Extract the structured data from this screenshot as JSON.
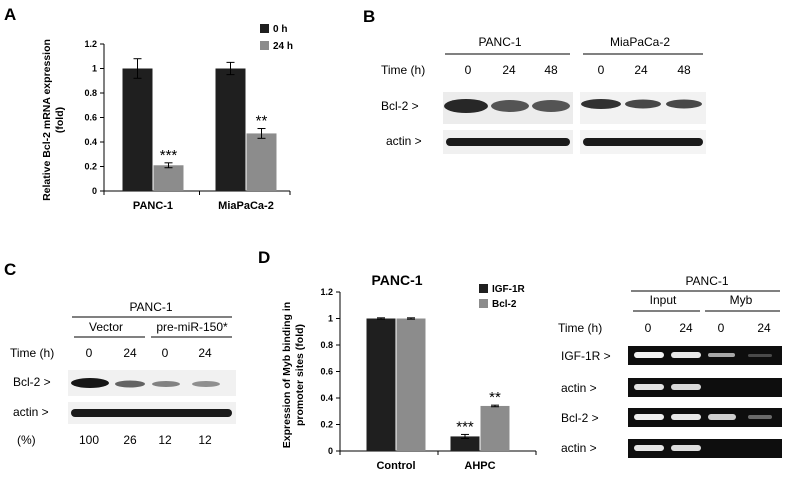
{
  "panels": {
    "A": {
      "letter": "A",
      "legend": [
        "0 h",
        "24 h"
      ],
      "legend_colors": [
        "#1f1f1f",
        "#8c8c8c"
      ],
      "ylabel_lines": [
        "Relative Bcl-2 mRNA expression",
        "(fold)"
      ],
      "yticks": [
        "0",
        "0.2",
        "0.4",
        "0.6",
        "0.8",
        "1",
        "1.2"
      ],
      "stars": [
        "***",
        "**"
      ]
    },
    "B": {
      "letter": "B",
      "groups": [
        "PANC-1",
        "MiaPaCa-2"
      ],
      "time_label": "Time (h)",
      "times": [
        "0",
        "24",
        "48",
        "0",
        "24",
        "48"
      ],
      "rows": [
        "Bcl-2 >",
        "actin >"
      ]
    },
    "C": {
      "letter": "C",
      "cell": "PANC-1",
      "groups": [
        "Vector",
        "pre-miR-150*"
      ],
      "time_label": "Time (h)",
      "times": [
        "0",
        "24",
        "0",
        "24"
      ],
      "rows": [
        "Bcl-2 >",
        "actin >"
      ],
      "pct_label": "(%)",
      "pct_values": [
        "100",
        "26",
        "12",
        "12"
      ]
    },
    "D": {
      "letter": "D",
      "title": "PANC-1",
      "legend": [
        "IGF-1R",
        "Bcl-2"
      ],
      "legend_colors": [
        "#1f1f1f",
        "#8c8c8c"
      ],
      "ylabel_lines": [
        "Expression of Myb binding in",
        "promoter sites (fold)"
      ],
      "yticks": [
        "0",
        "0.2",
        "0.4",
        "0.6",
        "0.8",
        "1",
        "1.2"
      ],
      "stars": [
        "***",
        "**"
      ]
    },
    "D_gel": {
      "cell": "PANC-1",
      "groups": [
        "Input",
        "Myb"
      ],
      "time_label": "Time (h)",
      "times": [
        "0",
        "24",
        "0",
        "24"
      ],
      "rows": [
        "IGF-1R >",
        "actin >",
        "Bcl-2 >",
        "actin >"
      ]
    }
  },
  "chart_data": [
    {
      "type": "bar",
      "categories": [
        "PANC-1",
        "MiaPaCa-2"
      ],
      "series": [
        {
          "name": "0 h",
          "values": [
            1.0,
            1.0
          ],
          "errors": [
            0.08,
            0.05
          ]
        },
        {
          "name": "24 h",
          "values": [
            0.21,
            0.47
          ],
          "errors": [
            0.02,
            0.04
          ]
        }
      ],
      "title": "",
      "xlabel": "",
      "ylabel": "Relative Bcl-2 mRNA expression (fold)",
      "ylim": [
        0,
        1.2
      ],
      "legend": "top-right"
    },
    {
      "type": "bar",
      "categories": [
        "Control",
        "AHPC"
      ],
      "series": [
        {
          "name": "IGF-1R",
          "values": [
            1.0,
            0.11
          ],
          "errors": [
            0.005,
            0.015
          ]
        },
        {
          "name": "Bcl-2",
          "values": [
            1.0,
            0.34
          ],
          "errors": [
            0.005,
            0.006
          ]
        }
      ],
      "title": "PANC-1",
      "xlabel": "",
      "ylabel": "Expression of Myb binding in promoter sites (fold)",
      "ylim": [
        0,
        1.2
      ],
      "legend": "top-right"
    }
  ]
}
